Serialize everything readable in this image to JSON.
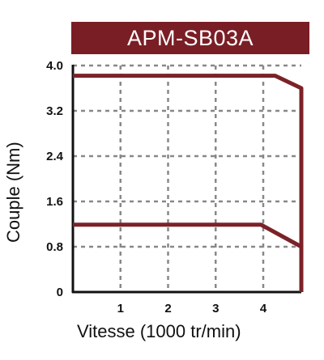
{
  "chart_data": {
    "type": "line",
    "title": "APM-SB03A",
    "xlabel": "Vitesse (1000 tr/min)",
    "ylabel": "Couple (Nm)",
    "xlim": [
      0,
      4.8
    ],
    "ylim": [
      0,
      4.0
    ],
    "x_ticks": [
      {
        "value": 1,
        "label": "1"
      },
      {
        "value": 2,
        "label": "2"
      },
      {
        "value": 3,
        "label": "3"
      },
      {
        "value": 4,
        "label": "4"
      }
    ],
    "y_ticks": [
      {
        "value": 4.0,
        "label": "4.0"
      },
      {
        "value": 3.2,
        "label": "3.2"
      },
      {
        "value": 2.4,
        "label": "2.4"
      },
      {
        "value": 1.6,
        "label": "1.6"
      },
      {
        "value": 0.8,
        "label": "0.8"
      },
      {
        "value": 0,
        "label": "0"
      }
    ],
    "grid": true,
    "series": [
      {
        "points": [
          [
            0,
            3.82
          ],
          [
            4.25,
            3.82
          ],
          [
            4.8,
            3.6
          ],
          [
            4.8,
            0
          ]
        ]
      },
      {
        "points": [
          [
            0,
            1.19
          ],
          [
            3.95,
            1.19
          ],
          [
            4.8,
            0.8
          ],
          [
            4.8,
            0
          ]
        ]
      }
    ],
    "colors": {
      "title_bg": "#7a1e25",
      "line": "#7b2228",
      "grid": "#888888",
      "axis": "#111111"
    }
  }
}
